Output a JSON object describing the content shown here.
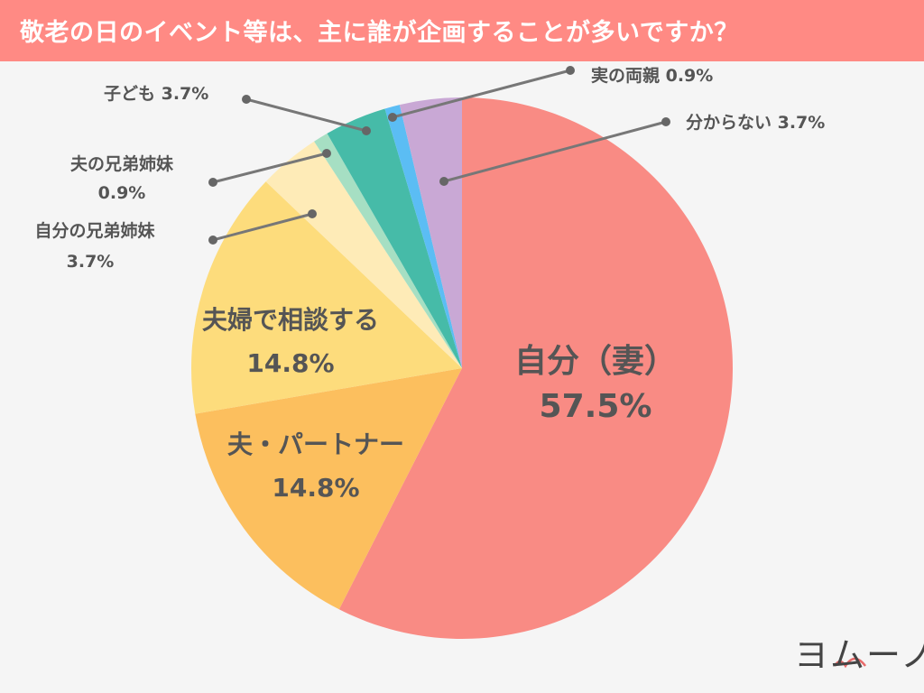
{
  "chart_data": {
    "type": "pie",
    "title": "敬老の日のイベント等は、主に誰が企画することが多いですか？",
    "start": "top",
    "direction": "clockwise",
    "slices": [
      {
        "label": "自分（妻）",
        "value": 57.5,
        "value_label": "57.5%",
        "color": "#f98b84"
      },
      {
        "label": "夫・パートナー",
        "value": 14.8,
        "value_label": "14.8%",
        "color": "#fcbf5e"
      },
      {
        "label": "夫婦で相談する",
        "value": 14.8,
        "value_label": "14.8%",
        "color": "#fddc7c"
      },
      {
        "label": "自分の兄弟姉妹",
        "value": 3.7,
        "value_label": "3.7%",
        "color": "#feebb7"
      },
      {
        "label": "夫の兄弟姉妹",
        "value": 0.9,
        "value_label": "0.9%",
        "color": "#a6dfc3"
      },
      {
        "label": "子ども",
        "value": 3.7,
        "value_label": "3.7%",
        "color": "#46bba8"
      },
      {
        "label": "実の両親",
        "value": 0.9,
        "value_label": "0.9%",
        "color": "#5bbdf4"
      },
      {
        "label": "分からない",
        "value": 3.7,
        "value_label": "3.7%",
        "color": "#c9a8d5"
      }
    ]
  },
  "logo_text": "ヨムーノ"
}
